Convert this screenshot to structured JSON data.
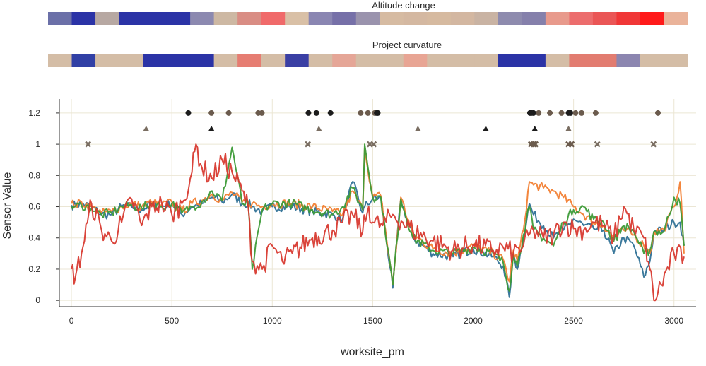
{
  "chart_data": {
    "type": "line",
    "xlabel": "worksite_pm",
    "ylabel": "Sensor Value",
    "xlim": [
      -60,
      3110
    ],
    "ylim": [
      -0.04,
      1.29
    ],
    "x_ticks": [
      0,
      500,
      1000,
      1500,
      2000,
      2500,
      3000
    ],
    "y_ticks": [
      0,
      0.2,
      0.4,
      0.6,
      0.8,
      1,
      1.2
    ],
    "y_tick_labels": [
      "0",
      "0.2",
      "0.4",
      "0.6",
      "0.8",
      "1",
      "1.2"
    ],
    "grid": true,
    "colors": {
      "blue": "#2f7196",
      "orange": "#f28033",
      "green": "#3d9b38",
      "red": "#d83a30",
      "marker_dark": "#1c1c1c",
      "marker_brown": "#6b5b4d",
      "marker_tan": "#7a6e62",
      "grid": "#ebe6d4",
      "axis": "#333333"
    },
    "heatmaps": [
      {
        "title": "Altitude change",
        "colors": [
          "#6b70a8",
          "#2b33a6",
          "#b7a8a2",
          "#2b33a6",
          "#2b33a6",
          "#2b33a6",
          "#8c89b0",
          "#cdb8a3",
          "#d98d84",
          "#f06a6a",
          "#d9c0a6",
          "#8a86b2",
          "#7670a8",
          "#9a93ad",
          "#d6bba2",
          "#d4b8a1",
          "#d6baa0",
          "#d3b7a1",
          "#c9b3a3",
          "#8e8bae",
          "#8580ab",
          "#e89a8c",
          "#ec6d6d",
          "#ea5656",
          "#f03737",
          "#ff1a1a",
          "#eab39a"
        ]
      },
      {
        "title": "Project curvature",
        "colors": [
          "#d4bda6",
          "#3140a5",
          "#d4bda6",
          "#d4bda6",
          "#2b33a6",
          "#2b33a6",
          "#2b33a6",
          "#d4bda6",
          "#e67d72",
          "#d4bda6",
          "#3a3fa4",
          "#d4bda6",
          "#e5a697",
          "#d4bda6",
          "#d4bda6",
          "#e8a594",
          "#d4bda6",
          "#d4bda6",
          "#d4bda6",
          "#2b33a6",
          "#2b33a6",
          "#d4bda6",
          "#e27c70",
          "#e27c70",
          "#8c86b0",
          "#d4bda6",
          "#d4bda6"
        ]
      }
    ],
    "series": [
      {
        "color_key": "blue",
        "x": [
          0,
          20,
          50,
          100,
          150,
          200,
          250,
          300,
          350,
          400,
          450,
          500,
          550,
          600,
          650,
          700,
          750,
          800,
          850,
          880,
          900,
          950,
          1000,
          1100,
          1200,
          1300,
          1350,
          1400,
          1450,
          1460,
          1500,
          1540,
          1600,
          1640,
          1700,
          1800,
          1900,
          2000,
          2100,
          2150,
          2180,
          2200,
          2220,
          2250,
          2280,
          2300,
          2350,
          2400,
          2450,
          2500,
          2550,
          2600,
          2650,
          2700,
          2750,
          2800,
          2850,
          2880,
          2900,
          2950,
          3000,
          3030,
          3050
        ],
        "y": [
          0.61,
          0.61,
          0.62,
          0.6,
          0.55,
          0.55,
          0.6,
          0.6,
          0.58,
          0.62,
          0.6,
          0.62,
          0.55,
          0.6,
          0.62,
          0.66,
          0.63,
          0.68,
          0.62,
          0.62,
          0.6,
          0.57,
          0.6,
          0.6,
          0.57,
          0.55,
          0.52,
          0.76,
          0.56,
          0.6,
          0.65,
          0.66,
          0.08,
          0.65,
          0.4,
          0.3,
          0.28,
          0.33,
          0.28,
          0.22,
          0.02,
          0.3,
          0.2,
          0.4,
          0.62,
          0.55,
          0.48,
          0.4,
          0.45,
          0.52,
          0.48,
          0.46,
          0.45,
          0.3,
          0.4,
          0.35,
          0.15,
          0.25,
          0.44,
          0.45,
          0.5,
          0.5,
          0.35
        ]
      },
      {
        "color_key": "orange",
        "x": [
          0,
          20,
          50,
          100,
          150,
          200,
          250,
          300,
          350,
          400,
          450,
          500,
          550,
          600,
          650,
          700,
          750,
          800,
          850,
          880,
          900,
          950,
          1000,
          1100,
          1200,
          1300,
          1350,
          1400,
          1450,
          1460,
          1500,
          1540,
          1600,
          1640,
          1700,
          1800,
          1900,
          2000,
          2100,
          2150,
          2180,
          2200,
          2220,
          2250,
          2280,
          2300,
          2350,
          2400,
          2450,
          2500,
          2550,
          2600,
          2650,
          2700,
          2750,
          2800,
          2850,
          2880,
          2900,
          2950,
          3000,
          3030,
          3050
        ],
        "y": [
          0.62,
          0.61,
          0.63,
          0.6,
          0.56,
          0.57,
          0.6,
          0.62,
          0.6,
          0.63,
          0.61,
          0.63,
          0.57,
          0.62,
          0.64,
          0.68,
          0.64,
          0.69,
          0.63,
          0.63,
          0.62,
          0.6,
          0.62,
          0.62,
          0.6,
          0.57,
          0.55,
          0.7,
          0.58,
          0.98,
          0.66,
          0.67,
          0.1,
          0.66,
          0.42,
          0.33,
          0.3,
          0.35,
          0.3,
          0.26,
          0.12,
          0.32,
          0.25,
          0.45,
          0.76,
          0.74,
          0.72,
          0.7,
          0.66,
          0.6,
          0.55,
          0.5,
          0.48,
          0.4,
          0.45,
          0.42,
          0.35,
          0.3,
          0.44,
          0.45,
          0.6,
          0.76,
          0.3
        ]
      },
      {
        "color_key": "green",
        "x": [
          0,
          20,
          50,
          100,
          150,
          200,
          250,
          300,
          350,
          400,
          450,
          500,
          550,
          600,
          650,
          700,
          750,
          800,
          850,
          880,
          900,
          950,
          1000,
          1100,
          1200,
          1300,
          1350,
          1400,
          1450,
          1460,
          1500,
          1540,
          1600,
          1640,
          1700,
          1800,
          1900,
          2000,
          2100,
          2150,
          2180,
          2200,
          2220,
          2250,
          2280,
          2300,
          2350,
          2400,
          2450,
          2500,
          2550,
          2600,
          2650,
          2700,
          2750,
          2800,
          2850,
          2880,
          2900,
          2950,
          3000,
          3030,
          3050
        ],
        "y": [
          0.6,
          0.6,
          0.61,
          0.59,
          0.55,
          0.56,
          0.6,
          0.61,
          0.59,
          0.62,
          0.6,
          0.62,
          0.56,
          0.6,
          0.63,
          0.7,
          0.64,
          0.98,
          0.62,
          0.62,
          0.2,
          0.58,
          0.62,
          0.62,
          0.58,
          0.55,
          0.6,
          0.72,
          0.58,
          1.0,
          0.66,
          0.66,
          0.1,
          0.65,
          0.4,
          0.32,
          0.3,
          0.34,
          0.3,
          0.24,
          0.06,
          0.3,
          0.22,
          0.42,
          0.6,
          0.45,
          0.4,
          0.35,
          0.5,
          0.58,
          0.6,
          0.52,
          0.5,
          0.38,
          0.48,
          0.44,
          0.3,
          0.32,
          0.44,
          0.44,
          0.66,
          0.62,
          0.35
        ]
      },
      {
        "color_key": "red",
        "x": [
          0,
          20,
          50,
          80,
          100,
          150,
          200,
          250,
          300,
          350,
          400,
          450,
          500,
          550,
          600,
          620,
          650,
          700,
          750,
          800,
          850,
          880,
          900,
          950,
          1000,
          1050,
          1100,
          1200,
          1300,
          1350,
          1400,
          1450,
          1480,
          1500,
          1550,
          1600,
          1650,
          1700,
          1800,
          1900,
          2000,
          2100,
          2150,
          2200,
          2250,
          2300,
          2350,
          2400,
          2450,
          2500,
          2550,
          2600,
          2650,
          2700,
          2750,
          2800,
          2850,
          2880,
          2900,
          2920,
          3000,
          3050
        ],
        "y": [
          0.2,
          0.15,
          0.3,
          0.5,
          0.62,
          0.45,
          0.38,
          0.5,
          0.65,
          0.48,
          0.6,
          0.62,
          0.55,
          0.62,
          0.82,
          1.0,
          0.85,
          0.78,
          0.9,
          0.82,
          0.7,
          0.6,
          0.25,
          0.2,
          0.35,
          0.25,
          0.3,
          0.4,
          0.45,
          0.5,
          0.55,
          0.44,
          0.6,
          0.5,
          0.48,
          0.55,
          0.5,
          0.45,
          0.38,
          0.32,
          0.36,
          0.32,
          0.34,
          0.3,
          0.35,
          0.45,
          0.4,
          0.42,
          0.5,
          0.46,
          0.45,
          0.5,
          0.48,
          0.4,
          0.6,
          0.45,
          0.4,
          0.2,
          0.0,
          0.05,
          0.3,
          0.28
        ]
      }
    ],
    "markers": {
      "circles": {
        "y": 1.2,
        "x": [
          582,
          697,
          783,
          930,
          948,
          1180,
          1220,
          1290,
          1440,
          1476,
          1510,
          1520,
          1525,
          2283,
          2290,
          2300,
          2326,
          2382,
          2440,
          2475,
          2485,
          2510,
          2540,
          2610,
          2920
        ],
        "shades": [
          "marker_dark",
          "marker_brown",
          "marker_brown",
          "marker_brown",
          "marker_brown",
          "marker_dark",
          "marker_dark",
          "marker_dark",
          "marker_brown",
          "marker_brown",
          "marker_brown",
          "marker_dark",
          "marker_dark",
          "marker_dark",
          "marker_dark",
          "marker_dark",
          "marker_brown",
          "marker_brown",
          "marker_brown",
          "marker_dark",
          "marker_dark",
          "marker_brown",
          "marker_brown",
          "marker_brown",
          "marker_brown"
        ]
      },
      "triangles": {
        "y": 1.1,
        "x": [
          372,
          697,
          1232,
          1725,
          2063,
          2307,
          2475
        ],
        "shades": [
          "marker_tan",
          "marker_dark",
          "marker_tan",
          "marker_tan",
          "marker_dark",
          "marker_dark",
          "marker_tan"
        ]
      },
      "crosses": {
        "y": 1.0,
        "x": [
          83,
          1177,
          1486,
          1505,
          2288,
          2300,
          2310,
          2475,
          2490,
          2618,
          2898
        ],
        "shades": [
          "marker_tan",
          "marker_tan",
          "marker_tan",
          "marker_tan",
          "marker_brown",
          "marker_brown",
          "marker_brown",
          "marker_brown",
          "marker_brown",
          "marker_tan",
          "marker_tan"
        ]
      }
    }
  }
}
